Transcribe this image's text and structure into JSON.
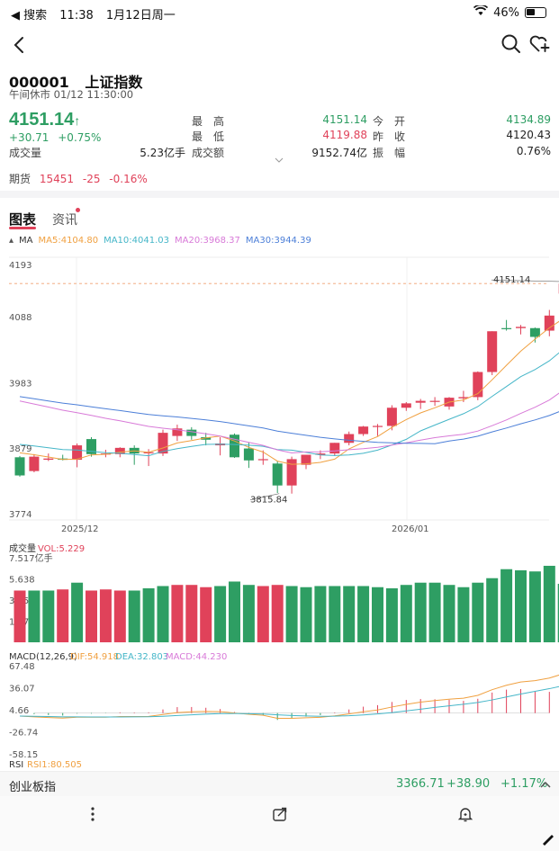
{
  "status_bar": {
    "back_text": "◀ 搜索",
    "time": "11:38",
    "date": "1月12日周一",
    "battery": "46%"
  },
  "header": {
    "code": "000001",
    "name": "上证指数",
    "session": "午间休市 01/12 11:30:00"
  },
  "quote": {
    "price": "4151.14",
    "change": "+30.71",
    "change_pct": "+0.75%",
    "volume_label": "成交量",
    "volume": "5.23亿手",
    "high_label": "最　高",
    "high": "4151.14",
    "low_label": "最　低",
    "low": "4119.88",
    "turnover_label": "成交额",
    "turnover": "9152.74亿",
    "open_label": "今　开",
    "open": "4134.89",
    "prev_close_label": "昨　收",
    "prev_close": "4120.43",
    "amplitude_label": "振　幅",
    "amplitude": "0.76%"
  },
  "futures": {
    "label": "期货",
    "value": "15451",
    "change": "-25",
    "change_pct": "-0.16%"
  },
  "tabs": {
    "chart": "图表",
    "info": "资讯"
  },
  "ma_legend": {
    "title": "MA",
    "ma5": "MA5:4104.80",
    "ma10": "MA10:4041.03",
    "ma20": "MA20:3968.37",
    "ma30": "MA30:3944.39"
  },
  "colors": {
    "up": "#e0425a",
    "down": "#2e9e63",
    "ma5": "#f0a040",
    "ma10": "#45b6c8",
    "ma20": "#d87ad8",
    "ma30": "#4c7fd8"
  },
  "chart_data": {
    "type": "candlestick",
    "y_ticks": [
      "4193",
      "4088",
      "3983",
      "3879",
      "3774"
    ],
    "ylim": [
      3774,
      4193
    ],
    "x_ticks": [
      "2025/12",
      "2026/01"
    ],
    "last_price_label": "4151.14",
    "low_marker_label": "3815.84",
    "candles": [
      {
        "o": 3874,
        "h": 3876,
        "l": 3843,
        "c": 3845
      },
      {
        "o": 3852,
        "h": 3879,
        "l": 3850,
        "c": 3875
      },
      {
        "o": 3870,
        "h": 3880,
        "l": 3868,
        "c": 3872
      },
      {
        "o": 3872,
        "h": 3878,
        "l": 3869,
        "c": 3870
      },
      {
        "o": 3870,
        "h": 3896,
        "l": 3858,
        "c": 3893
      },
      {
        "o": 3903,
        "h": 3906,
        "l": 3875,
        "c": 3879
      },
      {
        "o": 3879,
        "h": 3886,
        "l": 3874,
        "c": 3880
      },
      {
        "o": 3879,
        "h": 3890,
        "l": 3874,
        "c": 3889
      },
      {
        "o": 3889,
        "h": 3893,
        "l": 3862,
        "c": 3880
      },
      {
        "o": 3881,
        "h": 3887,
        "l": 3860,
        "c": 3882
      },
      {
        "o": 3880,
        "h": 3918,
        "l": 3876,
        "c": 3913
      },
      {
        "o": 3908,
        "h": 3926,
        "l": 3900,
        "c": 3920
      },
      {
        "o": 3918,
        "h": 3922,
        "l": 3902,
        "c": 3908
      },
      {
        "o": 3906,
        "h": 3913,
        "l": 3893,
        "c": 3902
      },
      {
        "o": 3893,
        "h": 3906,
        "l": 3877,
        "c": 3896
      },
      {
        "o": 3910,
        "h": 3912,
        "l": 3873,
        "c": 3874
      },
      {
        "o": 3888,
        "h": 3898,
        "l": 3857,
        "c": 3869
      },
      {
        "o": 3870,
        "h": 3885,
        "l": 3862,
        "c": 3871
      },
      {
        "o": 3864,
        "h": 3868,
        "l": 3817,
        "c": 3829
      },
      {
        "o": 3829,
        "h": 3875,
        "l": 3816,
        "c": 3871
      },
      {
        "o": 3862,
        "h": 3876,
        "l": 3855,
        "c": 3878
      },
      {
        "o": 3878,
        "h": 3885,
        "l": 3871,
        "c": 3880
      },
      {
        "o": 3880,
        "h": 3897,
        "l": 3876,
        "c": 3897
      },
      {
        "o": 3897,
        "h": 3915,
        "l": 3893,
        "c": 3911
      },
      {
        "o": 3911,
        "h": 3924,
        "l": 3908,
        "c": 3923
      },
      {
        "o": 3923,
        "h": 3927,
        "l": 3908,
        "c": 3924
      },
      {
        "o": 3924,
        "h": 3957,
        "l": 3917,
        "c": 3953
      },
      {
        "o": 3953,
        "h": 3962,
        "l": 3948,
        "c": 3960
      },
      {
        "o": 3961,
        "h": 3967,
        "l": 3951,
        "c": 3964
      },
      {
        "o": 3963,
        "h": 3970,
        "l": 3956,
        "c": 3964
      },
      {
        "o": 3955,
        "h": 3970,
        "l": 3950,
        "c": 3969
      },
      {
        "o": 3968,
        "h": 3980,
        "l": 3962,
        "c": 3970
      },
      {
        "o": 3970,
        "h": 4011,
        "l": 3965,
        "c": 4010
      },
      {
        "o": 4010,
        "h": 4075,
        "l": 4005,
        "c": 4075
      },
      {
        "o": 4080,
        "h": 4093,
        "l": 4076,
        "c": 4079
      },
      {
        "o": 4080,
        "h": 4085,
        "l": 4070,
        "c": 4082
      },
      {
        "o": 4080,
        "h": 4081,
        "l": 4057,
        "c": 4066
      },
      {
        "o": 4076,
        "h": 4109,
        "l": 4067,
        "c": 4100
      },
      {
        "o": 4135,
        "h": 4151,
        "l": 4120,
        "c": 4151
      }
    ],
    "ma_lines_note": "",
    "volume": {
      "label": "成交量",
      "legend": "VOL:5.229",
      "y_ticks": [
        "7.517亿手",
        "5.638",
        "3.759",
        "1.879"
      ],
      "values": [
        4.6,
        4.6,
        4.6,
        4.7,
        5.3,
        4.6,
        4.7,
        4.6,
        4.6,
        4.8,
        5.0,
        5.1,
        5.1,
        4.9,
        5.0,
        5.4,
        5.1,
        5.0,
        5.1,
        5.0,
        4.9,
        5.0,
        5.0,
        5.0,
        5.0,
        4.9,
        4.8,
        5.1,
        5.3,
        5.3,
        5.1,
        4.9,
        5.3,
        5.7,
        6.5,
        6.4,
        6.3,
        6.8,
        5.2
      ],
      "up_flags": [
        1,
        0,
        0,
        1,
        0,
        1,
        1,
        1,
        0,
        0,
        0,
        1,
        1,
        1,
        0,
        0,
        0,
        1,
        1,
        0,
        0,
        0,
        0,
        0,
        0,
        0,
        0,
        0,
        0,
        0,
        0,
        0,
        0,
        0,
        0,
        0,
        0,
        0,
        0
      ]
    },
    "macd": {
      "label": "MACD(12,26,9)",
      "dif": "DIF:54.918",
      "dea": "DEA:32.803",
      "macd": "MACD:44.230",
      "y_ticks": [
        "67.48",
        "36.07",
        "4.66",
        "-26.74",
        "-58.15"
      ]
    },
    "rsi": {
      "label": "RSI",
      "value": "RSI1:80.505"
    }
  },
  "bottom_ticker": {
    "name": "创业板指",
    "price": "3366.71",
    "change": "+38.90",
    "change_pct": "+1.17%"
  }
}
